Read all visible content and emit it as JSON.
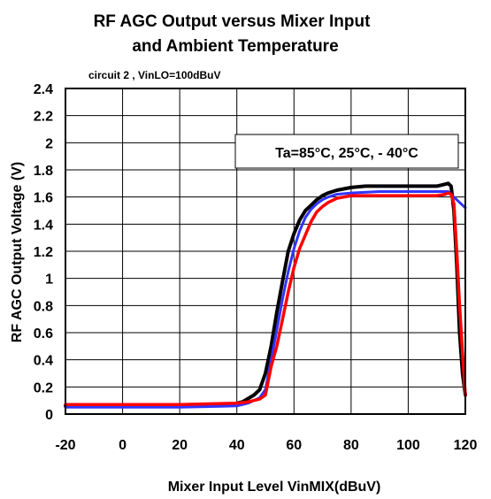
{
  "chart_data": {
    "type": "line",
    "title_lines": [
      "RF AGC Output versus Mixer Input",
      "and Ambient Temperature"
    ],
    "subtitle": "circuit 2 , VinLO=100dBuV",
    "xlabel": "Mixer Input Level VinMIX(dBuV)",
    "ylabel": "RF AGC Output Voltage (V)",
    "xlim": [
      -20,
      120
    ],
    "ylim": [
      0,
      2.4
    ],
    "xticks": [
      -20,
      0,
      20,
      40,
      60,
      80,
      100,
      120
    ],
    "yticks": [
      0,
      0.2,
      0.4,
      0.6,
      0.8,
      1,
      1.2,
      1.4,
      1.6,
      1.8,
      2,
      2.2,
      2.4
    ],
    "ytick_labels": [
      "0",
      "0.2",
      "0.4",
      "0.6",
      "0.8",
      "1",
      "1.2",
      "1.4",
      "1.6",
      "1.8",
      "2",
      "2.2",
      "2.4"
    ],
    "grid": true,
    "annotation": "Ta=85°C, 25°C, - 40°C",
    "series": [
      {
        "color": "#000000",
        "x": [
          -20,
          0,
          20,
          38,
          42,
          46,
          48,
          50,
          52,
          54,
          56,
          58,
          60,
          62,
          64,
          66,
          68,
          70,
          72,
          75,
          80,
          85,
          90,
          100,
          110,
          112,
          114,
          115,
          116,
          117,
          118,
          119,
          120
        ],
        "y": [
          0.06,
          0.06,
          0.06,
          0.07,
          0.09,
          0.14,
          0.18,
          0.3,
          0.5,
          0.75,
          0.98,
          1.2,
          1.33,
          1.43,
          1.5,
          1.54,
          1.58,
          1.61,
          1.63,
          1.65,
          1.67,
          1.68,
          1.68,
          1.68,
          1.68,
          1.69,
          1.7,
          1.68,
          1.5,
          1.1,
          0.6,
          0.3,
          0.14
        ]
      },
      {
        "color": "#3333ff",
        "x": [
          -20,
          0,
          20,
          40,
          44,
          48,
          50,
          52,
          54,
          56,
          58,
          60,
          62,
          64,
          66,
          68,
          70,
          72,
          75,
          80,
          90,
          100,
          110,
          114,
          116,
          118,
          120
        ],
        "y": [
          0.05,
          0.05,
          0.05,
          0.06,
          0.08,
          0.12,
          0.18,
          0.4,
          0.62,
          0.85,
          1.05,
          1.22,
          1.35,
          1.45,
          1.51,
          1.55,
          1.58,
          1.6,
          1.62,
          1.63,
          1.64,
          1.64,
          1.64,
          1.64,
          1.6,
          1.56,
          1.52
        ]
      },
      {
        "color": "#ff0000",
        "x": [
          -20,
          0,
          20,
          40,
          44,
          48,
          50,
          52,
          54,
          56,
          58,
          60,
          62,
          64,
          66,
          68,
          70,
          72,
          75,
          80,
          90,
          100,
          110,
          113,
          114,
          115,
          116,
          117,
          118,
          119,
          120
        ],
        "y": [
          0.07,
          0.07,
          0.07,
          0.08,
          0.09,
          0.11,
          0.14,
          0.35,
          0.5,
          0.7,
          0.9,
          1.08,
          1.22,
          1.32,
          1.42,
          1.49,
          1.53,
          1.56,
          1.59,
          1.61,
          1.61,
          1.61,
          1.61,
          1.62,
          1.63,
          1.62,
          1.55,
          1.2,
          0.8,
          0.45,
          0.14
        ]
      }
    ]
  }
}
